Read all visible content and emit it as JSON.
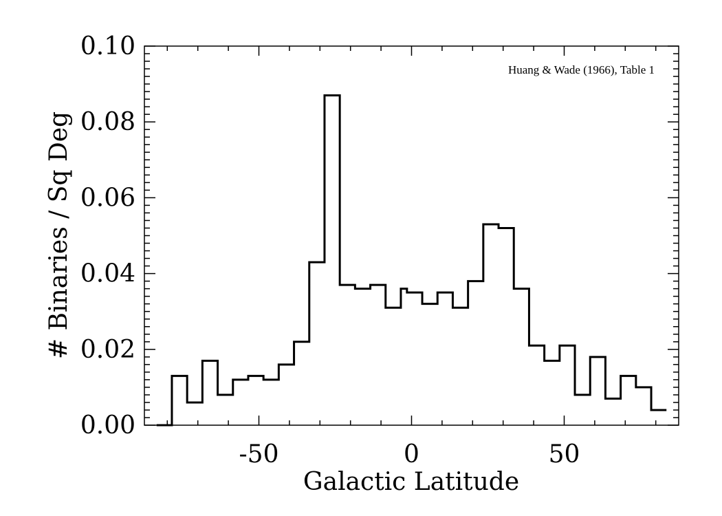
{
  "chart_data": {
    "type": "histogram",
    "xlabel": "Galactic Latitude",
    "ylabel": "# Binaries / Sq Deg",
    "annotation": "Huang & Wade (1966), Table 1",
    "xlim": [
      -87.5,
      87.5
    ],
    "ylim": [
      0,
      0.1
    ],
    "x_ticks": [
      -50,
      0,
      50
    ],
    "x_tick_labels": [
      "-50",
      "0",
      "50"
    ],
    "y_ticks": [
      0,
      0.02,
      0.04,
      0.06,
      0.08,
      0.1
    ],
    "y_tick_labels": [
      "0.00",
      "0.02",
      "0.04",
      "0.06",
      "0.08",
      "0.10"
    ],
    "grid": false,
    "series": [
      {
        "bin_edges": [
          -83.5,
          -78.5,
          -73.5,
          -68.5,
          -63.5,
          -58.5,
          -53.5,
          -48.5,
          -43.5,
          -38.5,
          -33.5,
          -28.5,
          -23.5,
          -18.5,
          -13.5,
          -8.5,
          -3.5,
          -1.5,
          3.5,
          8.5,
          13.5,
          18.5,
          23.5,
          28.5,
          33.5,
          38.5,
          43.5,
          48.5,
          53.5,
          58.5,
          63.5,
          68.5,
          73.5,
          78.5,
          83.5
        ],
        "values": [
          0.0,
          0.013,
          0.006,
          0.017,
          0.008,
          0.012,
          0.013,
          0.012,
          0.016,
          0.022,
          0.043,
          0.087,
          0.037,
          0.036,
          0.037,
          0.031,
          0.036,
          0.035,
          0.032,
          0.035,
          0.031,
          0.038,
          0.053,
          0.052,
          0.036,
          0.021,
          0.017,
          0.021,
          0.008,
          0.018,
          0.007,
          0.013,
          0.01,
          0.004
        ]
      }
    ]
  }
}
